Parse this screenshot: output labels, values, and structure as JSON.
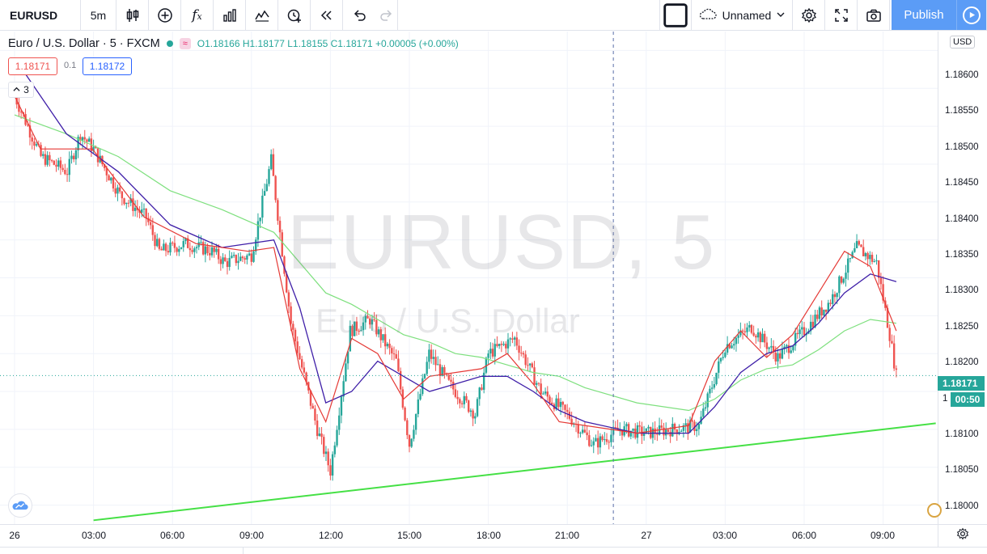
{
  "toolbar": {
    "symbol": "EURUSD",
    "interval": "5m",
    "layout_name": "Unnamed",
    "publish_label": "Publish"
  },
  "legend": {
    "title": "Euro / U.S. Dollar · 5 · FXCM",
    "badge": "≈",
    "open": "O1.18166",
    "high": "H1.18177",
    "low": "L1.18155",
    "close": "C1.18171",
    "change": "+0.00005 (+0.00%)"
  },
  "trade": {
    "sell": "1.18171",
    "spread": "0.1",
    "buy": "1.18172",
    "collapsed_count": "3"
  },
  "watermark": {
    "symbol": "EURUSD, 5",
    "description": "Euro / U.S. Dollar"
  },
  "price_axis": {
    "currency": "USD",
    "labels": [
      "1.18600",
      "1.18550",
      "1.18500",
      "1.18450",
      "1.18400",
      "1.18350",
      "1.18300",
      "1.18250",
      "1.18200",
      "1.18100",
      "1.18050",
      "1.18000"
    ],
    "last_price": "1.18171",
    "countdown": "00:50",
    "partial_label": "1"
  },
  "time_axis": {
    "labels": [
      "26",
      "03:00",
      "06:00",
      "09:00",
      "12:00",
      "15:00",
      "18:00",
      "21:00",
      "27",
      "03:00",
      "06:00",
      "09:00"
    ]
  },
  "colors": {
    "up": "#26a69a",
    "down": "#ef5350",
    "ema_fast": "#e53935",
    "ema_mid": "#3f1fa8",
    "ema_slow": "#7ee07e",
    "trendline": "#45e045",
    "accent": "#5b9cf6"
  },
  "chart_data": {
    "type": "candlestick",
    "symbol": "EURUSD",
    "timeframe": "5",
    "ylim": [
      1.17975,
      1.18625
    ],
    "x_ticks": [
      "26",
      "03:00",
      "06:00",
      "09:00",
      "12:00",
      "15:00",
      "18:00",
      "21:00",
      "27",
      "03:00",
      "06:00",
      "09:00"
    ],
    "price_path": [
      [
        "26 00:00",
        1.1854
      ],
      [
        "01:00",
        1.1846
      ],
      [
        "02:00",
        1.1844
      ],
      [
        "02:30",
        1.1849
      ],
      [
        "03:00",
        1.1847
      ],
      [
        "04:00",
        1.1841
      ],
      [
        "05:00",
        1.1838
      ],
      [
        "05:30",
        1.18335
      ],
      [
        "06:30",
        1.18345
      ],
      [
        "07:30",
        1.18335
      ],
      [
        "08:00",
        1.1832
      ],
      [
        "09:00",
        1.1833
      ],
      [
        "09:45",
        1.18455
      ],
      [
        "10:30",
        1.1824
      ],
      [
        "11:30",
        1.181
      ],
      [
        "12:00",
        1.18045
      ],
      [
        "12:45",
        1.1823
      ],
      [
        "13:30",
        1.18245
      ],
      [
        "14:30",
        1.1819
      ],
      [
        "15:00",
        1.1808
      ],
      [
        "15:45",
        1.182
      ],
      [
        "16:30",
        1.1816
      ],
      [
        "17:30",
        1.1812
      ],
      [
        "18:00",
        1.182
      ],
      [
        "19:00",
        1.1822
      ],
      [
        "20:00",
        1.1815
      ],
      [
        "21:00",
        1.1812
      ],
      [
        "22:00",
        1.1808
      ],
      [
        "23:00",
        1.181
      ],
      [
        "27 00:00",
        1.18095
      ],
      [
        "01:00",
        1.181
      ],
      [
        "02:00",
        1.18105
      ],
      [
        "03:00",
        1.1821
      ],
      [
        "04:00",
        1.18235
      ],
      [
        "05:00",
        1.18195
      ],
      [
        "06:00",
        1.1823
      ],
      [
        "07:00",
        1.1827
      ],
      [
        "08:00",
        1.1834
      ],
      [
        "08:45",
        1.1832
      ],
      [
        "09:15",
        1.18225
      ],
      [
        "09:30",
        1.18171
      ]
    ],
    "ema_fast": [
      [
        0,
        1.1854
      ],
      [
        1,
        1.1847
      ],
      [
        3,
        1.1847
      ],
      [
        5,
        1.1838
      ],
      [
        7,
        1.18345
      ],
      [
        9,
        1.18335
      ],
      [
        10,
        1.1834
      ],
      [
        11,
        1.1818
      ],
      [
        12,
        1.1811
      ],
      [
        13,
        1.1822
      ],
      [
        14,
        1.182
      ],
      [
        15,
        1.1814
      ],
      [
        16,
        1.1817
      ],
      [
        18,
        1.1818
      ],
      [
        19,
        1.182
      ],
      [
        20,
        1.1816
      ],
      [
        21,
        1.1811
      ],
      [
        23,
        1.181
      ],
      [
        24,
        1.18095
      ],
      [
        26,
        1.18105
      ],
      [
        27,
        1.1819
      ],
      [
        28,
        1.1823
      ],
      [
        29,
        1.18195
      ],
      [
        30,
        1.18225
      ],
      [
        31,
        1.1828
      ],
      [
        32,
        1.18335
      ],
      [
        33,
        1.18315
      ],
      [
        34,
        1.1823
      ]
    ],
    "ema_mid": [
      [
        0,
        1.1859
      ],
      [
        2,
        1.1849
      ],
      [
        4,
        1.1844
      ],
      [
        6,
        1.1837
      ],
      [
        8,
        1.1834
      ],
      [
        10,
        1.1835
      ],
      [
        11,
        1.1826
      ],
      [
        12,
        1.18135
      ],
      [
        13,
        1.1815
      ],
      [
        14,
        1.1819
      ],
      [
        15,
        1.1817
      ],
      [
        16,
        1.1815
      ],
      [
        17,
        1.1816
      ],
      [
        18,
        1.1817
      ],
      [
        19,
        1.1817
      ],
      [
        20,
        1.1815
      ],
      [
        21,
        1.18125
      ],
      [
        22,
        1.1811
      ],
      [
        24,
        1.18095
      ],
      [
        26,
        1.18095
      ],
      [
        27,
        1.1813
      ],
      [
        28,
        1.18175
      ],
      [
        29,
        1.182
      ],
      [
        30,
        1.1821
      ],
      [
        31,
        1.1824
      ],
      [
        32,
        1.1828
      ],
      [
        33,
        1.18305
      ],
      [
        34,
        1.18295
      ]
    ],
    "ema_slow": [
      [
        0,
        1.18515
      ],
      [
        2,
        1.1849
      ],
      [
        4,
        1.1846
      ],
      [
        6,
        1.18415
      ],
      [
        8,
        1.1839
      ],
      [
        10,
        1.1836
      ],
      [
        11,
        1.1832
      ],
      [
        12,
        1.1828
      ],
      [
        13,
        1.18265
      ],
      [
        14,
        1.18245
      ],
      [
        15,
        1.18225
      ],
      [
        16,
        1.18215
      ],
      [
        17,
        1.182
      ],
      [
        18,
        1.18195
      ],
      [
        19,
        1.18185
      ],
      [
        20,
        1.18175
      ],
      [
        21,
        1.1817
      ],
      [
        22,
        1.18155
      ],
      [
        24,
        1.18135
      ],
      [
        26,
        1.18125
      ],
      [
        27,
        1.1814
      ],
      [
        28,
        1.18165
      ],
      [
        29,
        1.1818
      ],
      [
        30,
        1.18185
      ],
      [
        31,
        1.18205
      ],
      [
        32,
        1.1823
      ],
      [
        33,
        1.18245
      ],
      [
        34,
        1.1824
      ]
    ],
    "trendline": {
      "start": [
        "26 03:00",
        1.1798
      ],
      "end": [
        "27 11:00",
        1.18108
      ]
    },
    "vertical_marker": "22:45",
    "last_price": 1.18171,
    "grid": true
  }
}
